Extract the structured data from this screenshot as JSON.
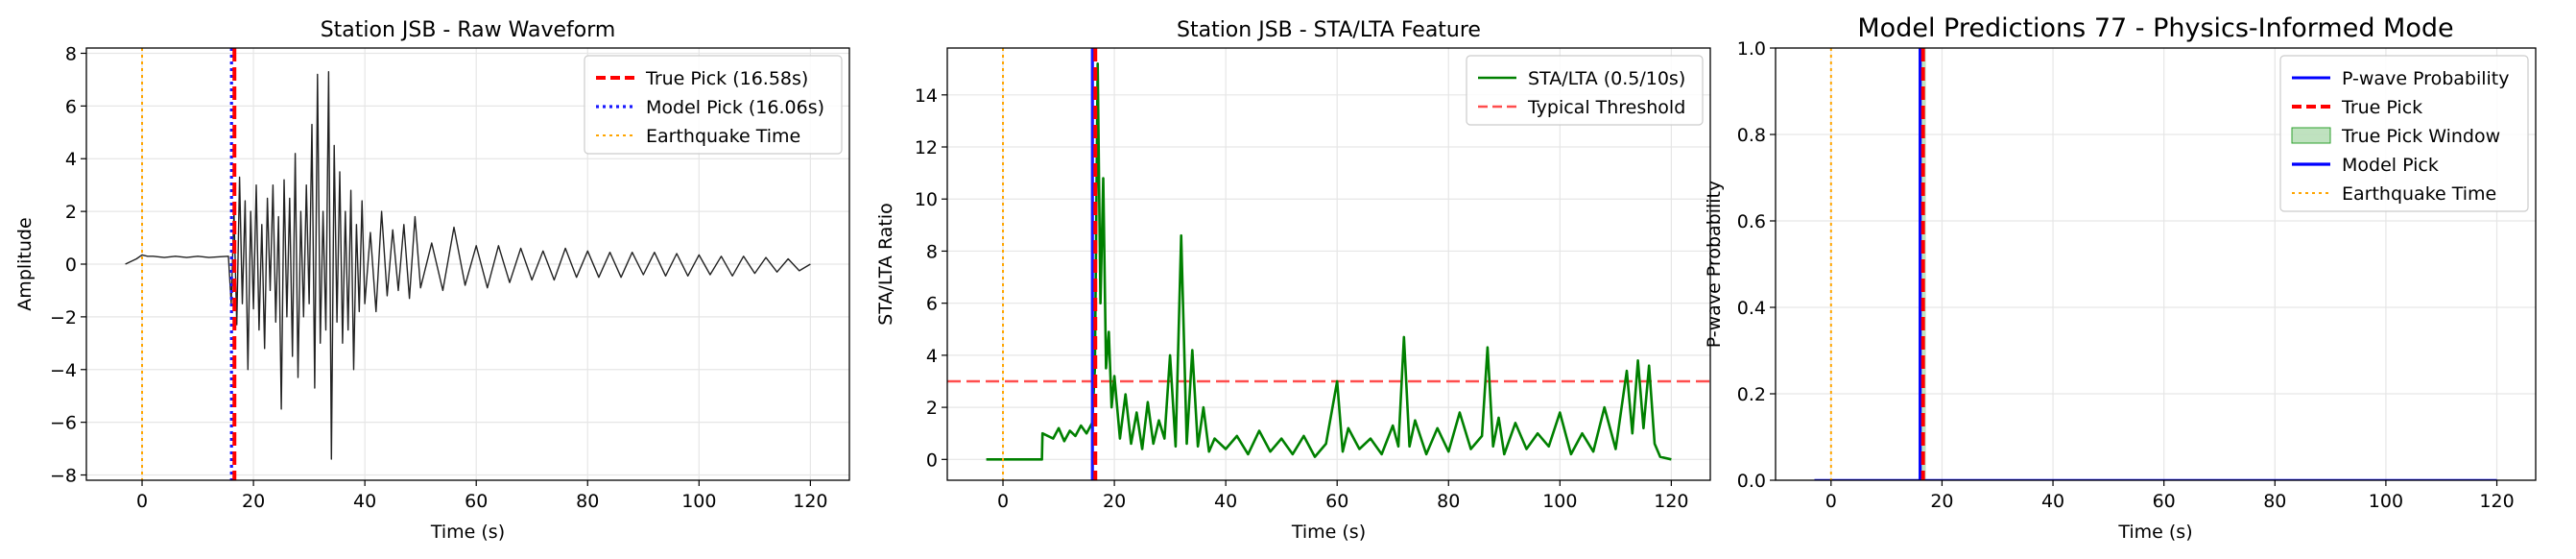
{
  "chart_data": [
    {
      "type": "line",
      "title": "Station JSB - Raw Waveform",
      "xlabel": "Time (s)",
      "ylabel": "Amplitude",
      "xlim": [
        -10,
        127
      ],
      "ylim": [
        -8.2,
        8.2
      ],
      "xticks": [
        0,
        20,
        40,
        60,
        80,
        100,
        120
      ],
      "xtick_labels": [
        "0",
        "20",
        "40",
        "60",
        "80",
        "100",
        "120"
      ],
      "yticks": [
        -8,
        -6,
        -4,
        -2,
        0,
        2,
        4,
        6,
        8
      ],
      "ytick_labels": [
        "−8",
        "−6",
        "−4",
        "−2",
        "0",
        "2",
        "4",
        "6",
        "8"
      ],
      "grid": true,
      "legend_position": "upper right",
      "series": [
        {
          "label": "",
          "color": "#222222",
          "kind": "waveform",
          "x": [
            -3,
            -1,
            0,
            1,
            2,
            4,
            6,
            8,
            10,
            12,
            14,
            15.5,
            16,
            16.5,
            17,
            17.5,
            18,
            18.5,
            19,
            19.5,
            20,
            20.5,
            21,
            21.5,
            22,
            22.5,
            23,
            23.5,
            24,
            24.5,
            25,
            25.5,
            26,
            26.5,
            27,
            27.5,
            28,
            28.5,
            29,
            29.5,
            30,
            30.5,
            31,
            31.5,
            32,
            32.5,
            33,
            33.5,
            34,
            34.5,
            35,
            35.5,
            36,
            36.5,
            37,
            37.5,
            38,
            38.5,
            39,
            39.5,
            40,
            41,
            42,
            43,
            44,
            45,
            46,
            47,
            48,
            49,
            50,
            52,
            54,
            56,
            58,
            60,
            62,
            64,
            66,
            68,
            70,
            72,
            74,
            76,
            78,
            80,
            82,
            84,
            86,
            88,
            90,
            92,
            94,
            96,
            98,
            100,
            102,
            104,
            106,
            108,
            110,
            112,
            114,
            116,
            118,
            120
          ],
          "y": [
            0.0,
            0.2,
            0.35,
            0.3,
            0.3,
            0.25,
            0.3,
            0.25,
            0.3,
            0.25,
            0.28,
            0.3,
            -1.5,
            2.0,
            -2.3,
            3.3,
            -1.5,
            2.4,
            -4.0,
            2.0,
            -1.7,
            3.0,
            -2.5,
            1.5,
            -3.2,
            2.5,
            -1.0,
            3.0,
            -2.2,
            1.8,
            -5.5,
            3.2,
            -2.0,
            2.5,
            -3.5,
            4.2,
            -4.3,
            2.0,
            -2.0,
            3.0,
            -1.5,
            5.3,
            -4.7,
            7.2,
            -3.0,
            2.0,
            -2.5,
            7.3,
            -7.4,
            4.5,
            -2.2,
            3.5,
            -3.0,
            2.0,
            -2.5,
            2.8,
            -4.0,
            1.5,
            -1.8,
            2.4,
            -1.5,
            1.2,
            -1.8,
            2.0,
            -1.2,
            1.3,
            -1.0,
            1.5,
            -1.3,
            1.8,
            -0.9,
            0.8,
            -1.0,
            1.4,
            -0.8,
            0.7,
            -0.9,
            0.7,
            -0.7,
            0.6,
            -0.6,
            0.5,
            -0.6,
            0.6,
            -0.5,
            0.5,
            -0.5,
            0.45,
            -0.5,
            0.45,
            -0.4,
            0.45,
            -0.45,
            0.4,
            -0.45,
            0.35,
            -0.4,
            0.3,
            -0.45,
            0.3,
            -0.35,
            0.25,
            -0.3,
            0.2,
            -0.25,
            0.0
          ]
        }
      ],
      "vlines": [
        {
          "label": "True Pick (16.58s)",
          "x": 16.58,
          "color": "#ff0000",
          "style": "dashed",
          "width": 4
        },
        {
          "label": "Model Pick (16.06s)",
          "x": 16.06,
          "color": "#1a1aff",
          "style": "dotted",
          "width": 3.2
        },
        {
          "label": "Earthquake Time",
          "x": 0,
          "color": "#ffa500",
          "style": "dotted",
          "width": 2
        }
      ]
    },
    {
      "type": "line",
      "title": "Station JSB - STA/LTA Feature",
      "xlabel": "Time (s)",
      "ylabel": "STA/LTA Ratio",
      "xlim": [
        -10,
        127
      ],
      "ylim": [
        -0.8,
        15.8
      ],
      "xticks": [
        0,
        20,
        40,
        60,
        80,
        100,
        120
      ],
      "xtick_labels": [
        "0",
        "20",
        "40",
        "60",
        "80",
        "100",
        "120"
      ],
      "yticks": [
        0,
        2,
        4,
        6,
        8,
        10,
        12,
        14
      ],
      "ytick_labels": [
        "0",
        "2",
        "4",
        "6",
        "8",
        "10",
        "12",
        "14"
      ],
      "grid": true,
      "legend_position": "upper right",
      "series": [
        {
          "label": "STA/LTA (0.5/10s)",
          "color": "#008000",
          "x": [
            -3,
            7,
            7.1,
            9,
            10,
            11,
            12,
            13,
            14,
            15,
            16,
            16.5,
            17,
            17.5,
            18,
            18.5,
            19,
            19.5,
            20,
            21,
            22,
            23,
            24,
            25,
            26,
            27,
            28,
            29,
            30,
            31,
            32,
            33,
            34,
            35,
            36,
            37,
            38,
            40,
            42,
            44,
            46,
            48,
            50,
            52,
            54,
            56,
            58,
            60,
            61,
            62,
            64,
            66,
            68,
            70,
            71,
            72,
            73,
            74,
            76,
            78,
            80,
            82,
            84,
            86,
            87,
            88,
            89,
            90,
            92,
            94,
            96,
            98,
            100,
            102,
            104,
            106,
            108,
            110,
            112,
            113,
            114,
            115,
            116,
            117,
            118,
            120
          ],
          "y": [
            0,
            0,
            1.0,
            0.8,
            1.2,
            0.7,
            1.1,
            0.9,
            1.3,
            1.0,
            1.4,
            3.5,
            15.2,
            6.0,
            10.8,
            3.5,
            4.9,
            2.0,
            3.2,
            0.8,
            2.5,
            0.6,
            1.8,
            0.4,
            2.2,
            0.6,
            1.5,
            0.8,
            4.0,
            0.5,
            8.6,
            0.6,
            4.2,
            0.5,
            2.0,
            0.3,
            0.8,
            0.4,
            0.9,
            0.2,
            1.1,
            0.3,
            0.8,
            0.2,
            0.9,
            0.1,
            0.6,
            3.0,
            0.3,
            1.2,
            0.4,
            0.8,
            0.2,
            1.3,
            0.5,
            4.7,
            0.5,
            1.5,
            0.2,
            1.2,
            0.3,
            1.8,
            0.4,
            0.9,
            4.3,
            0.5,
            1.6,
            0.2,
            1.4,
            0.4,
            1.0,
            0.5,
            1.8,
            0.2,
            1.0,
            0.3,
            2.0,
            0.4,
            3.4,
            1.0,
            3.8,
            1.2,
            3.6,
            0.6,
            0.1,
            0.0
          ]
        }
      ],
      "hlines": [
        {
          "label": "Typical Threshold",
          "y": 3,
          "color": "#ff4d4d",
          "style": "dashed",
          "width": 2.5
        }
      ],
      "vlines": [
        {
          "label": "",
          "x": 16.58,
          "color": "#ff0000",
          "style": "dashed",
          "width": 4
        },
        {
          "label": "",
          "x": 16.06,
          "color": "#1a1aff",
          "style": "solid",
          "width": 3.2
        },
        {
          "label": "",
          "x": 0,
          "color": "#ffa500",
          "style": "dotted",
          "width": 2
        }
      ]
    },
    {
      "type": "line",
      "title": "Model Predictions 77 - Physics-Informed Mode",
      "xlabel": "Time (s)",
      "ylabel": "P-wave Probability",
      "xlim": [
        -10,
        127
      ],
      "ylim": [
        0,
        1
      ],
      "xticks": [
        0,
        20,
        40,
        60,
        80,
        100,
        120
      ],
      "xtick_labels": [
        "0",
        "20",
        "40",
        "60",
        "80",
        "100",
        "120"
      ],
      "yticks": [
        0,
        0.2,
        0.4,
        0.6,
        0.8,
        1.0
      ],
      "ytick_labels": [
        "0.0",
        "0.2",
        "0.4",
        "0.6",
        "0.8",
        "1.0"
      ],
      "grid": true,
      "legend_position": "upper right",
      "series": [
        {
          "label": "P-wave Probability",
          "color": "#0000ff",
          "x": [
            -3,
            120
          ],
          "y": [
            0,
            0
          ]
        }
      ],
      "spans": [
        {
          "label": "True Pick Window",
          "x0": 16.08,
          "x1": 17.08,
          "color": "#2ca02c",
          "opacity": 0.3
        }
      ],
      "vlines": [
        {
          "label": "True Pick",
          "x": 16.58,
          "color": "#ff0000",
          "style": "dashed",
          "width": 4
        },
        {
          "label": "Model Pick",
          "x": 16.06,
          "color": "#0000ff",
          "style": "solid",
          "width": 3.2
        },
        {
          "label": "Earthquake Time",
          "x": 0,
          "color": "#ffa500",
          "style": "dotted",
          "width": 2
        }
      ],
      "legend_order": [
        "P-wave Probability",
        "True Pick",
        "True Pick Window",
        "Model Pick",
        "Earthquake Time"
      ]
    }
  ]
}
